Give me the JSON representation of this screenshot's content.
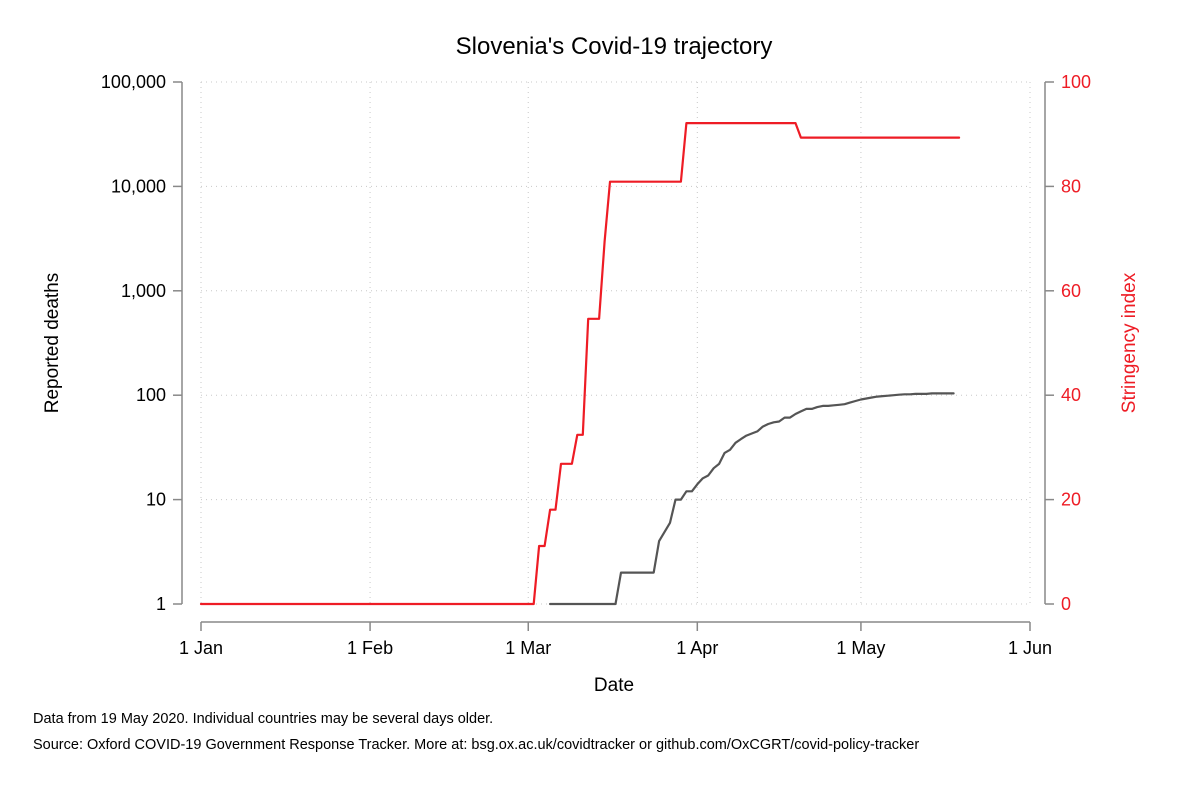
{
  "chart_data": {
    "type": "line",
    "title": "Slovenia's Covid-19 trajectory",
    "xlabel": "Date",
    "ylabel_left": "Reported deaths",
    "ylabel_right": "Stringency index",
    "x_ticks": [
      {
        "date": "2020-01-01",
        "label": "1 Jan"
      },
      {
        "date": "2020-02-01",
        "label": "1 Feb"
      },
      {
        "date": "2020-03-01",
        "label": "1 Mar"
      },
      {
        "date": "2020-04-01",
        "label": "1 Apr"
      },
      {
        "date": "2020-05-01",
        "label": "1 May"
      },
      {
        "date": "2020-06-01",
        "label": "1 Jun"
      }
    ],
    "xlim": [
      "2020-01-01",
      "2020-06-01"
    ],
    "y_left": {
      "scale": "log",
      "lim": [
        1,
        100000
      ],
      "ticks": [
        {
          "value": 1,
          "label": "1"
        },
        {
          "value": 10,
          "label": "10"
        },
        {
          "value": 100,
          "label": "100"
        },
        {
          "value": 1000,
          "label": "1,000"
        },
        {
          "value": 10000,
          "label": "10,000"
        },
        {
          "value": 100000,
          "label": "100,000"
        }
      ]
    },
    "y_right": {
      "scale": "linear",
      "lim": [
        0,
        100
      ],
      "ticks": [
        {
          "value": 0,
          "label": "0"
        },
        {
          "value": 20,
          "label": "20"
        },
        {
          "value": 40,
          "label": "40"
        },
        {
          "value": 60,
          "label": "60"
        },
        {
          "value": 80,
          "label": "80"
        },
        {
          "value": 100,
          "label": "100"
        }
      ]
    },
    "grid": true,
    "series": [
      {
        "axis": "left",
        "color": "#555555",
        "points": [
          [
            "2020-03-05",
            1
          ],
          [
            "2020-03-17",
            1
          ],
          [
            "2020-03-18",
            2
          ],
          [
            "2020-03-24",
            2
          ],
          [
            "2020-03-25",
            4
          ],
          [
            "2020-03-27",
            6
          ],
          [
            "2020-03-28",
            10
          ],
          [
            "2020-03-29",
            10
          ],
          [
            "2020-03-30",
            12
          ],
          [
            "2020-03-31",
            12
          ],
          [
            "2020-04-01",
            14
          ],
          [
            "2020-04-02",
            16
          ],
          [
            "2020-04-03",
            17
          ],
          [
            "2020-04-04",
            20
          ],
          [
            "2020-04-05",
            22
          ],
          [
            "2020-04-06",
            28
          ],
          [
            "2020-04-07",
            30
          ],
          [
            "2020-04-08",
            35
          ],
          [
            "2020-04-09",
            38
          ],
          [
            "2020-04-10",
            41
          ],
          [
            "2020-04-11",
            43
          ],
          [
            "2020-04-12",
            45
          ],
          [
            "2020-04-13",
            50
          ],
          [
            "2020-04-14",
            53
          ],
          [
            "2020-04-15",
            55
          ],
          [
            "2020-04-16",
            56
          ],
          [
            "2020-04-17",
            61
          ],
          [
            "2020-04-18",
            61
          ],
          [
            "2020-04-19",
            66
          ],
          [
            "2020-04-20",
            70
          ],
          [
            "2020-04-21",
            74
          ],
          [
            "2020-04-22",
            74
          ],
          [
            "2020-04-23",
            77
          ],
          [
            "2020-04-24",
            79
          ],
          [
            "2020-04-25",
            79
          ],
          [
            "2020-04-26",
            80
          ],
          [
            "2020-04-27",
            81
          ],
          [
            "2020-04-28",
            82
          ],
          [
            "2020-04-29",
            85
          ],
          [
            "2020-04-30",
            88
          ],
          [
            "2020-05-01",
            91
          ],
          [
            "2020-05-02",
            93
          ],
          [
            "2020-05-03",
            95
          ],
          [
            "2020-05-04",
            97
          ],
          [
            "2020-05-05",
            98
          ],
          [
            "2020-05-06",
            99
          ],
          [
            "2020-05-07",
            100
          ],
          [
            "2020-05-08",
            101
          ],
          [
            "2020-05-09",
            102
          ],
          [
            "2020-05-10",
            102
          ],
          [
            "2020-05-11",
            103
          ],
          [
            "2020-05-12",
            103
          ],
          [
            "2020-05-13",
            103
          ],
          [
            "2020-05-14",
            104
          ],
          [
            "2020-05-15",
            104
          ],
          [
            "2020-05-16",
            104
          ],
          [
            "2020-05-17",
            104
          ],
          [
            "2020-05-18",
            104
          ]
        ]
      },
      {
        "axis": "right",
        "color": "#ee1c25",
        "points": [
          [
            "2020-01-01",
            0
          ],
          [
            "2020-03-02",
            0
          ],
          [
            "2020-03-03",
            11.11
          ],
          [
            "2020-03-04",
            11.11
          ],
          [
            "2020-03-05",
            18.06
          ],
          [
            "2020-03-06",
            18.06
          ],
          [
            "2020-03-07",
            26.85
          ],
          [
            "2020-03-08",
            26.85
          ],
          [
            "2020-03-09",
            26.85
          ],
          [
            "2020-03-10",
            32.41
          ],
          [
            "2020-03-11",
            32.41
          ],
          [
            "2020-03-12",
            54.63
          ],
          [
            "2020-03-13",
            54.63
          ],
          [
            "2020-03-14",
            54.63
          ],
          [
            "2020-03-15",
            69.44
          ],
          [
            "2020-03-16",
            80.9
          ],
          [
            "2020-03-29",
            80.9
          ],
          [
            "2020-03-30",
            92.13
          ],
          [
            "2020-04-19",
            92.13
          ],
          [
            "2020-04-20",
            89.35
          ],
          [
            "2020-05-19",
            89.35
          ]
        ]
      }
    ]
  },
  "notes": {
    "line1": "Data from 19 May 2020. Individual countries may be several days older.",
    "line2": "Source: Oxford COVID-19 Government Response Tracker. More at: bsg.ox.ac.uk/covidtracker or github.com/OxCGRT/covid-policy-tracker"
  }
}
